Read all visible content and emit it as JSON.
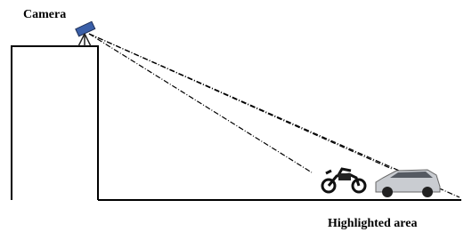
{
  "labels": {
    "camera": "Camera",
    "highlighted_area": "Highlighted area"
  }
}
